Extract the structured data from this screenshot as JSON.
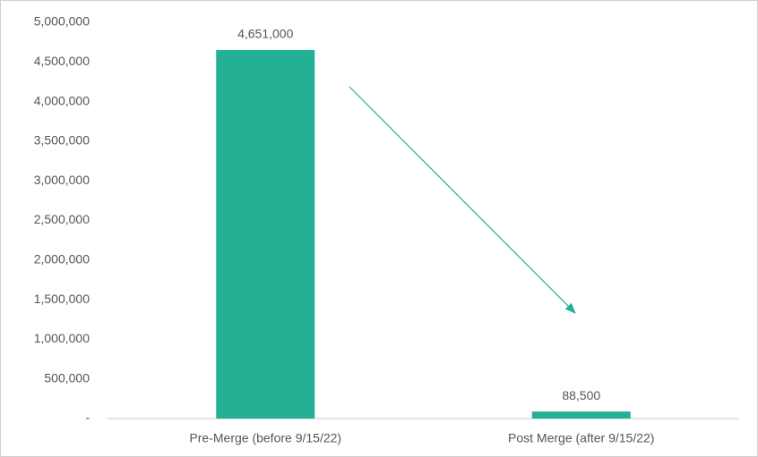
{
  "chart_data": {
    "type": "bar",
    "categories": [
      "Pre-Merge (before 9/15/22)",
      "Post Merge (after 9/15/22)"
    ],
    "values": [
      4651000,
      88500
    ],
    "value_labels": [
      "4,651,000",
      "88,500"
    ],
    "color": "#23b095",
    "ylim": [
      0,
      5000000
    ],
    "yticks": [
      {
        "value": 0,
        "label": "-"
      },
      {
        "value": 500000,
        "label": "500,000"
      },
      {
        "value": 1000000,
        "label": "1,000,000"
      },
      {
        "value": 1500000,
        "label": "1,500,000"
      },
      {
        "value": 2000000,
        "label": "2,000,000"
      },
      {
        "value": 2500000,
        "label": "2,500,000"
      },
      {
        "value": 3000000,
        "label": "3,000,000"
      },
      {
        "value": 3500000,
        "label": "3,500,000"
      },
      {
        "value": 4000000,
        "label": "4,000,000"
      },
      {
        "value": 4500000,
        "label": "4,500,000"
      },
      {
        "value": 5000000,
        "label": "5,000,000"
      }
    ],
    "grid": false
  }
}
